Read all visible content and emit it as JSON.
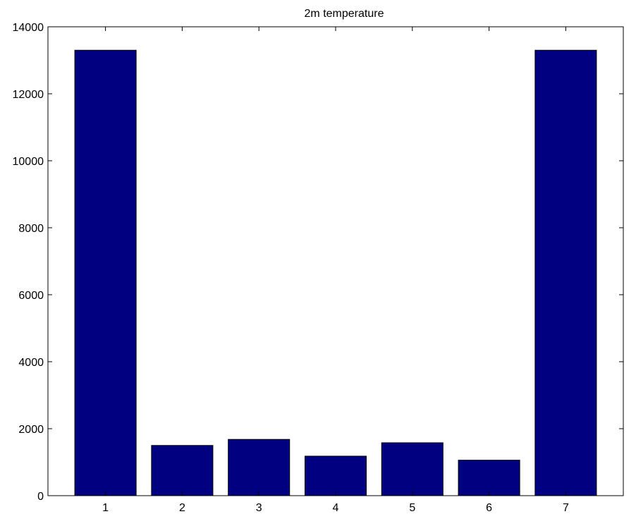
{
  "chart_data": {
    "type": "bar",
    "title": "2m temperature",
    "xlabel": "",
    "ylabel": "",
    "categories": [
      "1",
      "2",
      "3",
      "4",
      "5",
      "6",
      "7"
    ],
    "values": [
      13300,
      1500,
      1680,
      1180,
      1580,
      1060,
      13300
    ],
    "ylim": [
      0,
      14000
    ],
    "yticks": [
      0,
      2000,
      4000,
      6000,
      8000,
      10000,
      12000,
      14000
    ],
    "ytick_labels": [
      "0",
      "2000",
      "4000",
      "6000",
      "8000",
      "10000",
      "12000",
      "14000"
    ],
    "grid": false,
    "bar_color": "#000080",
    "bar_edge_color": "#000000"
  }
}
